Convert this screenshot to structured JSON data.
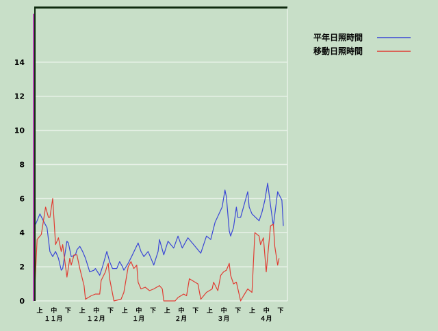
{
  "chart_data": {
    "type": "line",
    "title": "",
    "xlabel": "",
    "ylabel": "",
    "ylim": [
      0,
      17.2
    ],
    "yticks": [
      0,
      2,
      4,
      6,
      8,
      10,
      12,
      14
    ],
    "grid": true,
    "legend_placement": "top-right",
    "x_period": [
      "11-01",
      "04-30"
    ],
    "xtick_dekads": [
      "上",
      "中",
      "下",
      "上",
      "中",
      "下",
      "上",
      "中",
      "下",
      "上",
      "中",
      "下",
      "上",
      "中",
      "下",
      "上",
      "中",
      "下"
    ],
    "xtick_months": [
      "１１月",
      "１２月",
      "１月",
      "２月",
      "３月",
      "４月"
    ],
    "series": [
      {
        "name": "平年日照時間",
        "color": "#3a46d6",
        "points": [
          [
            "11-01",
            4.6
          ],
          [
            "11-02",
            4.5
          ],
          [
            "11-05",
            5.1
          ],
          [
            "11-08",
            4.6
          ],
          [
            "11-10",
            4.3
          ],
          [
            "11-12",
            2.9
          ],
          [
            "11-14",
            2.6
          ],
          [
            "11-16",
            2.9
          ],
          [
            "11-18",
            2.5
          ],
          [
            "11-20",
            1.8
          ],
          [
            "11-21",
            1.9
          ],
          [
            "11-24",
            3.5
          ],
          [
            "11-25",
            3.4
          ],
          [
            "11-27",
            2.6
          ],
          [
            "11-30",
            2.7
          ],
          [
            "12-01",
            3.0
          ],
          [
            "12-03",
            3.2
          ],
          [
            "12-05",
            2.9
          ],
          [
            "12-07",
            2.5
          ],
          [
            "12-10",
            1.7
          ],
          [
            "12-13",
            1.8
          ],
          [
            "12-14",
            1.9
          ],
          [
            "12-17",
            1.5
          ],
          [
            "12-19",
            2.0
          ],
          [
            "12-22",
            2.9
          ],
          [
            "12-24",
            2.3
          ],
          [
            "12-26",
            1.9
          ],
          [
            "12-29",
            1.9
          ],
          [
            "12-31",
            2.3
          ],
          [
            "01-02",
            2.0
          ],
          [
            "01-03",
            1.8
          ],
          [
            "01-06",
            2.2
          ],
          [
            "01-09",
            2.7
          ],
          [
            "01-13",
            3.4
          ],
          [
            "01-15",
            2.9
          ],
          [
            "01-17",
            2.6
          ],
          [
            "01-20",
            2.9
          ],
          [
            "01-24",
            2.1
          ],
          [
            "01-27",
            2.9
          ],
          [
            "01-28",
            3.6
          ],
          [
            "01-31",
            2.7
          ],
          [
            "02-03",
            3.5
          ],
          [
            "02-07",
            3.1
          ],
          [
            "02-10",
            3.8
          ],
          [
            "02-13",
            3.1
          ],
          [
            "02-17",
            3.7
          ],
          [
            "02-21",
            3.3
          ],
          [
            "02-26",
            2.8
          ],
          [
            "03-02",
            3.8
          ],
          [
            "03-05",
            3.6
          ],
          [
            "03-08",
            4.6
          ],
          [
            "03-13",
            5.5
          ],
          [
            "03-15",
            6.5
          ],
          [
            "03-16",
            6.1
          ],
          [
            "03-18",
            4.1
          ],
          [
            "03-19",
            3.8
          ],
          [
            "03-21",
            4.3
          ],
          [
            "03-23",
            5.5
          ],
          [
            "03-24",
            4.9
          ],
          [
            "03-26",
            4.9
          ],
          [
            "03-28",
            5.5
          ],
          [
            "03-31",
            6.4
          ],
          [
            "04-01",
            5.5
          ],
          [
            "04-03",
            5.1
          ],
          [
            "04-08",
            4.7
          ],
          [
            "04-10",
            5.2
          ],
          [
            "04-12",
            5.9
          ],
          [
            "04-14",
            6.9
          ],
          [
            "04-16",
            5.6
          ],
          [
            "04-18",
            4.4
          ],
          [
            "04-21",
            6.4
          ],
          [
            "04-24",
            5.9
          ],
          [
            "04-25",
            4.4
          ]
        ]
      },
      {
        "name": "移動日照時間",
        "color": "#e03c32",
        "points": [
          [
            "11-01",
            0
          ],
          [
            "11-03",
            3.6
          ],
          [
            "11-06",
            3.9
          ],
          [
            "11-09",
            5.5
          ],
          [
            "11-11",
            4.9
          ],
          [
            "11-12",
            4.9
          ],
          [
            "11-14",
            6.0
          ],
          [
            "11-16",
            3.3
          ],
          [
            "11-18",
            3.7
          ],
          [
            "11-20",
            2.9
          ],
          [
            "11-21",
            3.3
          ],
          [
            "11-24",
            1.4
          ],
          [
            "11-26",
            2.5
          ],
          [
            "11-27",
            2.1
          ],
          [
            "11-29",
            2.7
          ],
          [
            "12-01",
            2.7
          ],
          [
            "12-03",
            1.9
          ],
          [
            "12-06",
            0.9
          ],
          [
            "12-07",
            0.1
          ],
          [
            "12-11",
            0.3
          ],
          [
            "12-14",
            0.4
          ],
          [
            "12-17",
            0.4
          ],
          [
            "12-18",
            1.2
          ],
          [
            "12-21",
            1.7
          ],
          [
            "12-22",
            2.0
          ],
          [
            "12-23",
            2.2
          ],
          [
            "12-24",
            1.3
          ],
          [
            "12-27",
            0
          ],
          [
            "01-01",
            0.1
          ],
          [
            "01-03",
            0.5
          ],
          [
            "01-06",
            2.0
          ],
          [
            "01-08",
            2.3
          ],
          [
            "01-10",
            1.9
          ],
          [
            "01-12",
            2.1
          ],
          [
            "01-13",
            1.1
          ],
          [
            "01-15",
            0.7
          ],
          [
            "01-18",
            0.8
          ],
          [
            "01-21",
            0.6
          ],
          [
            "01-24",
            0.7
          ],
          [
            "01-28",
            0.9
          ],
          [
            "01-30",
            0.7
          ],
          [
            "01-31",
            0
          ],
          [
            "02-08",
            0
          ],
          [
            "02-10",
            0.2
          ],
          [
            "02-14",
            0.4
          ],
          [
            "02-16",
            0.3
          ],
          [
            "02-18",
            1.3
          ],
          [
            "02-22",
            1.1
          ],
          [
            "02-24",
            1.0
          ],
          [
            "02-26",
            0.1
          ],
          [
            "03-02",
            0.5
          ],
          [
            "03-06",
            0.7
          ],
          [
            "03-07",
            1.1
          ],
          [
            "03-10",
            0.6
          ],
          [
            "03-12",
            1.5
          ],
          [
            "03-14",
            1.7
          ],
          [
            "03-16",
            1.8
          ],
          [
            "03-18",
            2.2
          ],
          [
            "03-19",
            1.5
          ],
          [
            "03-21",
            1.0
          ],
          [
            "03-23",
            1.1
          ],
          [
            "03-26",
            0
          ],
          [
            "03-28",
            0.3
          ],
          [
            "03-31",
            0.7
          ],
          [
            "04-03",
            0.5
          ],
          [
            "04-05",
            4.0
          ],
          [
            "04-08",
            3.8
          ],
          [
            "04-09",
            3.3
          ],
          [
            "04-11",
            3.7
          ],
          [
            "04-13",
            1.7
          ],
          [
            "04-16",
            4.4
          ],
          [
            "04-18",
            4.5
          ],
          [
            "04-19",
            3.2
          ],
          [
            "04-21",
            2.1
          ],
          [
            "04-22",
            2.5
          ]
        ]
      }
    ]
  },
  "colors": {
    "background": "#c8dfc8",
    "frame": "#0e2a0e",
    "grid": "#e8f2e8",
    "left_marker": "#b040b0"
  }
}
